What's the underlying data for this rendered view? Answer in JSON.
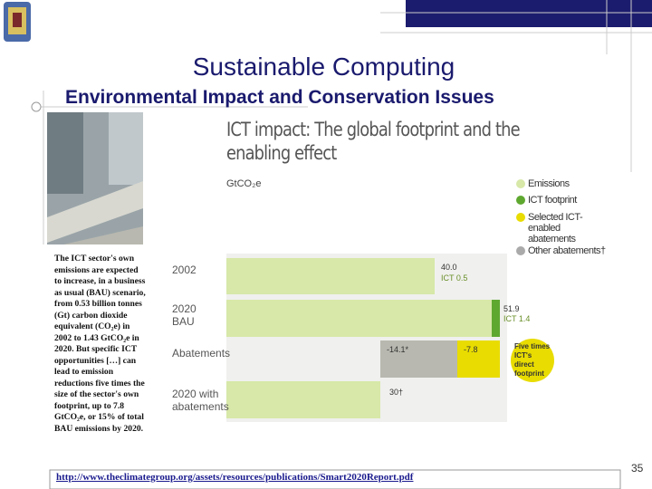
{
  "slide": {
    "title": "Sustainable Computing",
    "subtitle": "Environmental Impact and Conservation Issues",
    "body": "The ICT sector's own emissions are expected to increase, in a business as usual (BAU) scenario, from 0.53 billion tonnes (Gt) carbon dioxide equivalent (CO₂e) in 2002 to 1.43 GtCO₂e in 2020. But specific ICT opportunities […] can lead to emission reductions five times the size of the sector's own footprint, up to 7.8 GtCO₂e, or 15% of total BAU emissions by 2020.",
    "link": "http://www.theclimategroup.org/assets/resources/publications/Smart2020Report.pdf",
    "page_number": "35"
  },
  "figure": {
    "title": "ICT impact: The global footprint and the enabling effect",
    "unit": "GtCO₂e",
    "legend": [
      "Emissions",
      "ICT footprint",
      "Selected ICT-enabled abatements",
      "Other abatements†"
    ],
    "rows": [
      {
        "label": "2002",
        "value": "40.0",
        "ict": "ICT 0.5"
      },
      {
        "label": "2020 BAU",
        "value": "51.9",
        "ict": "ICT 1.4"
      },
      {
        "label": "Abatements",
        "value": "-14.1*",
        "value2": "-7.8"
      },
      {
        "label": "2020 with abatements",
        "value": "30†"
      }
    ],
    "callout": "Five times ICT's direct footprint"
  }
}
